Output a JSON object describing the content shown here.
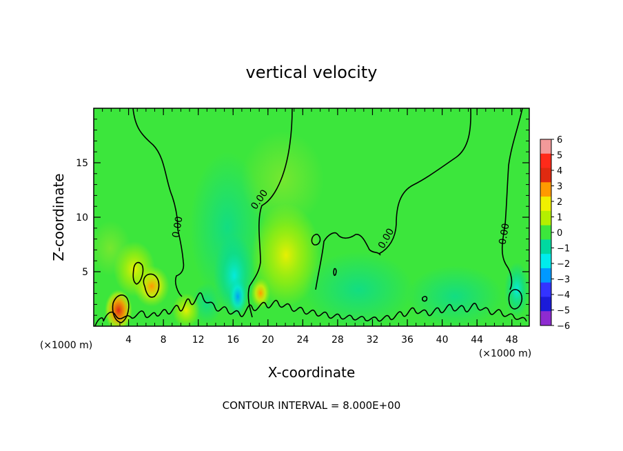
{
  "chart_data": {
    "type": "heatmap",
    "title": "vertical velocity",
    "xlabel": "X-coordinate",
    "ylabel": "Z-coordinate",
    "x_unit_label_left": "(×1000 m)",
    "x_unit_label_right": "(×1000 m)",
    "xlim": [
      0,
      50
    ],
    "ylim": [
      0,
      20
    ],
    "xticks": [
      4,
      8,
      12,
      16,
      20,
      24,
      28,
      32,
      36,
      40,
      44,
      48
    ],
    "xtick_labels": [
      "4",
      "8",
      "12",
      "16",
      "20",
      "24",
      "28",
      "32",
      "36",
      "40",
      "44",
      "48"
    ],
    "yticks": [
      5,
      10,
      15
    ],
    "ytick_labels": [
      "5",
      "10",
      "15"
    ],
    "colorbar": {
      "labels": [
        "6",
        "5",
        "4",
        "3",
        "2",
        "1",
        "0",
        "−1",
        "−2",
        "−3",
        "−4",
        "−5",
        "−6"
      ],
      "colors": [
        "#f29a9a",
        "#ff2a1a",
        "#e02a10",
        "#ff9a00",
        "#f0f000",
        "#b4ef00",
        "#3ce63c",
        "#00d9a0",
        "#00ecec",
        "#0099ff",
        "#3333ff",
        "#1b1bd9",
        "#8e2bd0"
      ]
    },
    "contour_labels": [
      "0.00",
      "0.00",
      "0.00",
      "0.00"
    ],
    "contour_interval": "CONTOUR INTERVAL = 8.000E+00",
    "background_color": "#3ce63c",
    "notes_hidden": ""
  }
}
